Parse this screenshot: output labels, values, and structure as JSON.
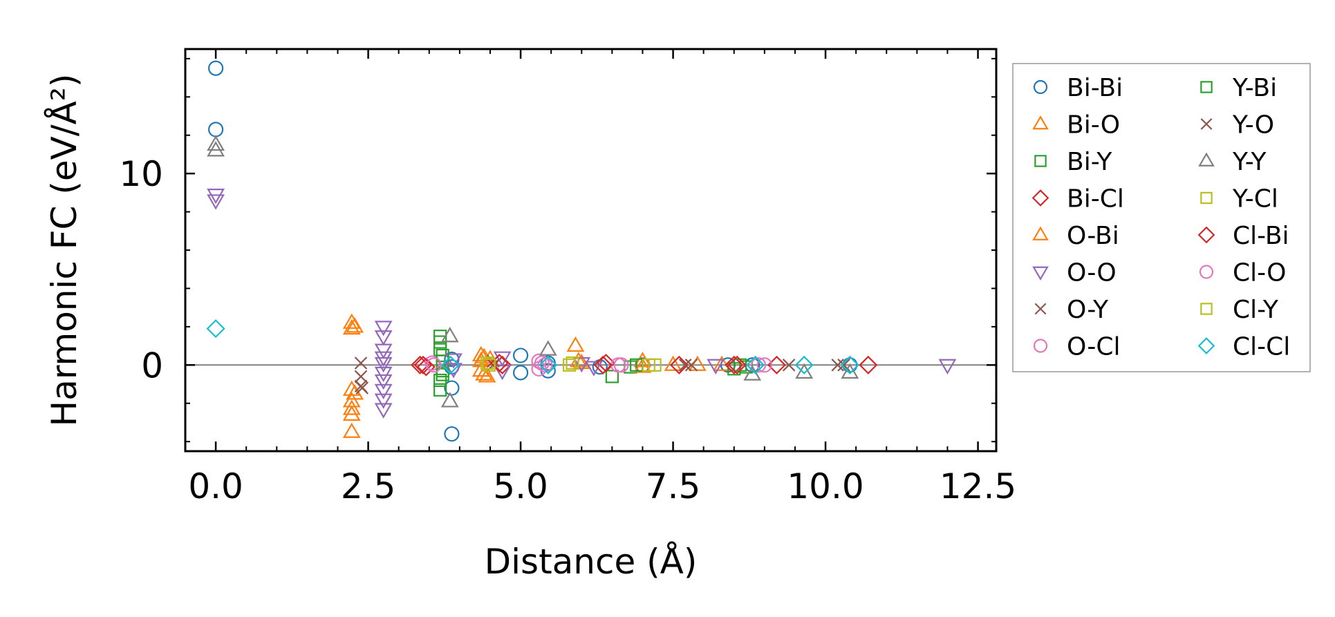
{
  "chart_data": {
    "type": "scatter",
    "title": "",
    "xlabel": "Distance (Å)",
    "ylabel": "Harmonic FC (eV/Å²)",
    "xlim": [
      -0.5,
      12.8
    ],
    "ylim": [
      -4.5,
      16.5
    ],
    "x_ticks": [
      0.0,
      2.5,
      5.0,
      7.5,
      10.0,
      12.5
    ],
    "x_tick_labels": [
      "0.0",
      "2.5",
      "5.0",
      "7.5",
      "10.0",
      "12.5"
    ],
    "y_ticks": [
      0,
      10
    ],
    "y_tick_labels": [
      "0",
      "10"
    ],
    "zero_line": true,
    "grid": false,
    "legend_position": "outside-right",
    "series": [
      {
        "name": "Bi-Bi",
        "marker": "circle",
        "color": "#1f77b4",
        "points": [
          [
            0,
            15.5
          ],
          [
            0,
            12.3
          ],
          [
            3.87,
            -3.6
          ],
          [
            3.87,
            -1.2
          ],
          [
            3.87,
            0.3
          ],
          [
            3.87,
            -0.1
          ],
          [
            5.0,
            0.5
          ],
          [
            5.0,
            -0.4
          ],
          [
            5.45,
            0.1
          ],
          [
            5.45,
            -0.3
          ],
          [
            6.3,
            -0.1
          ],
          [
            7.0,
            0.0
          ],
          [
            8.4,
            0.0
          ],
          [
            8.8,
            0.0
          ],
          [
            10.4,
            0.0
          ]
        ]
      },
      {
        "name": "Bi-O",
        "marker": "triangle-up",
        "color": "#ff7f0e",
        "points": [
          [
            2.23,
            2.2
          ],
          [
            2.23,
            1.9
          ],
          [
            2.23,
            -1.3
          ],
          [
            2.23,
            -1.9
          ],
          [
            2.23,
            -2.3
          ],
          [
            2.23,
            -2.6
          ],
          [
            2.23,
            -3.5
          ],
          [
            4.35,
            0.5
          ],
          [
            4.35,
            0.2
          ],
          [
            4.35,
            -0.3
          ],
          [
            4.45,
            -0.6
          ],
          [
            4.5,
            0.3
          ],
          [
            5.9,
            1.0
          ],
          [
            6.0,
            0.1
          ],
          [
            7.0,
            0.2
          ],
          [
            7.5,
            0.0
          ],
          [
            7.9,
            0.0
          ],
          [
            8.3,
            0.0
          ]
        ]
      },
      {
        "name": "Bi-Y",
        "marker": "square",
        "color": "#2ca02c",
        "points": [
          [
            3.68,
            1.5
          ],
          [
            3.68,
            1.2
          ],
          [
            3.68,
            0.8
          ],
          [
            3.68,
            -0.8
          ],
          [
            3.68,
            -1.3
          ],
          [
            3.72,
            0.2
          ],
          [
            3.72,
            -0.3
          ],
          [
            6.5,
            -0.6
          ],
          [
            6.8,
            -0.1
          ],
          [
            8.5,
            -0.2
          ],
          [
            8.7,
            -0.1
          ]
        ]
      },
      {
        "name": "Bi-Cl",
        "marker": "diamond",
        "color": "#d62728",
        "points": [
          [
            3.35,
            0.0
          ],
          [
            3.45,
            -0.1
          ],
          [
            4.7,
            0.0
          ],
          [
            6.4,
            0.1
          ],
          [
            7.6,
            0.0
          ],
          [
            8.5,
            0.0
          ],
          [
            9.2,
            0.0
          ],
          [
            10.7,
            0.0
          ]
        ]
      },
      {
        "name": "O-Bi",
        "marker": "triangle-up",
        "color": "#ff7f0e",
        "points": [
          [
            2.28,
            2.0
          ],
          [
            2.28,
            -1.5
          ],
          [
            4.4,
            0.4
          ],
          [
            4.4,
            -0.5
          ],
          [
            5.95,
            0.2
          ],
          [
            7.0,
            -0.1
          ]
        ]
      },
      {
        "name": "O-O",
        "marker": "triangle-down",
        "color": "#9467bd",
        "points": [
          [
            0,
            8.9
          ],
          [
            0,
            8.6
          ],
          [
            2.75,
            2.0
          ],
          [
            2.75,
            1.5
          ],
          [
            2.75,
            0.8
          ],
          [
            2.75,
            0.4
          ],
          [
            2.75,
            0.1
          ],
          [
            2.75,
            -0.4
          ],
          [
            2.75,
            -0.8
          ],
          [
            2.75,
            -1.3
          ],
          [
            2.75,
            -1.8
          ],
          [
            2.75,
            -2.3
          ],
          [
            3.9,
            0.3
          ],
          [
            3.9,
            -0.2
          ],
          [
            4.7,
            0.4
          ],
          [
            4.7,
            -0.3
          ],
          [
            6.0,
            0.1
          ],
          [
            6.2,
            -0.1
          ],
          [
            8.2,
            0.0
          ],
          [
            12.0,
            0.0
          ]
        ]
      },
      {
        "name": "O-Y",
        "marker": "x",
        "color": "#8c564b",
        "points": [
          [
            2.38,
            0.1
          ],
          [
            2.38,
            -0.6
          ],
          [
            2.38,
            -1.1
          ],
          [
            4.55,
            0.0
          ],
          [
            7.7,
            0.0
          ],
          [
            10.2,
            0.0
          ]
        ]
      },
      {
        "name": "O-Cl",
        "marker": "circle",
        "color": "#e377c2",
        "points": [
          [
            3.55,
            0.1
          ],
          [
            5.3,
            0.2
          ],
          [
            5.3,
            -0.2
          ],
          [
            5.4,
            0.0
          ],
          [
            6.6,
            0.0
          ],
          [
            8.9,
            0.0
          ]
        ]
      },
      {
        "name": "Y-Bi",
        "marker": "square",
        "color": "#2ca02c",
        "points": [
          [
            3.72,
            0.5
          ],
          [
            3.72,
            -0.5
          ],
          [
            6.9,
            0.0
          ],
          [
            8.6,
            0.0
          ]
        ]
      },
      {
        "name": "Y-O",
        "marker": "x",
        "color": "#8c564b",
        "points": [
          [
            2.4,
            -1.2
          ],
          [
            4.55,
            0.2
          ],
          [
            7.8,
            0.0
          ],
          [
            9.4,
            0.0
          ],
          [
            10.3,
            0.0
          ]
        ]
      },
      {
        "name": "Y-Y",
        "marker": "triangle-up",
        "color": "#7f7f7f",
        "points": [
          [
            0,
            11.5
          ],
          [
            0,
            11.2
          ],
          [
            3.84,
            1.5
          ],
          [
            3.84,
            -1.9
          ],
          [
            5.45,
            0.8
          ],
          [
            8.8,
            -0.5
          ],
          [
            9.65,
            -0.4
          ],
          [
            10.4,
            -0.4
          ]
        ]
      },
      {
        "name": "Y-Cl",
        "marker": "square",
        "color": "#bcbd22",
        "points": [
          [
            4.45,
            0.1
          ],
          [
            5.8,
            0.0
          ],
          [
            7.1,
            0.0
          ]
        ]
      },
      {
        "name": "Cl-Bi",
        "marker": "diamond",
        "color": "#d62728",
        "points": [
          [
            3.4,
            0.0
          ],
          [
            4.65,
            0.1
          ],
          [
            6.35,
            0.0
          ],
          [
            8.55,
            0.0
          ]
        ]
      },
      {
        "name": "Cl-O",
        "marker": "circle",
        "color": "#e377c2",
        "points": [
          [
            3.58,
            0.0
          ],
          [
            5.35,
            0.1
          ],
          [
            6.65,
            0.0
          ],
          [
            9.0,
            0.0
          ]
        ]
      },
      {
        "name": "Cl-Y",
        "marker": "square",
        "color": "#bcbd22",
        "points": [
          [
            4.48,
            0.0
          ],
          [
            5.85,
            0.1
          ],
          [
            7.2,
            0.0
          ]
        ]
      },
      {
        "name": "Cl-Cl",
        "marker": "diamond",
        "color": "#17becf",
        "points": [
          [
            0,
            1.9
          ],
          [
            3.85,
            0.0
          ],
          [
            5.45,
            0.0
          ],
          [
            8.85,
            0.0
          ],
          [
            9.65,
            0.0
          ],
          [
            10.4,
            0.0
          ]
        ]
      }
    ]
  }
}
